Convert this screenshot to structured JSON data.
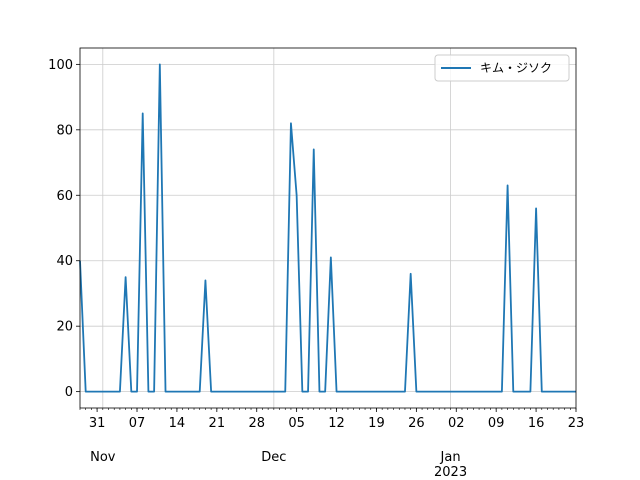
{
  "chart_data": {
    "type": "line",
    "title": "",
    "xlabel": "",
    "ylabel": "",
    "x_range": [
      "2022-10-28",
      "2023-01-23"
    ],
    "ylim": [
      -5,
      105
    ],
    "grid": true,
    "legend_position": "top-right",
    "y_ticks": [
      0,
      20,
      40,
      60,
      80,
      100
    ],
    "x_major_ticks": [
      {
        "date": "2022-10-31",
        "label": "31"
      },
      {
        "date": "2022-11-07",
        "label": "07"
      },
      {
        "date": "2022-11-14",
        "label": "14"
      },
      {
        "date": "2022-11-21",
        "label": "21"
      },
      {
        "date": "2022-11-28",
        "label": "28"
      },
      {
        "date": "2022-12-05",
        "label": "05"
      },
      {
        "date": "2022-12-12",
        "label": "12"
      },
      {
        "date": "2022-12-19",
        "label": "19"
      },
      {
        "date": "2022-12-26",
        "label": "26"
      },
      {
        "date": "2023-01-02",
        "label": "02"
      },
      {
        "date": "2023-01-09",
        "label": "09"
      },
      {
        "date": "2023-01-16",
        "label": "16"
      },
      {
        "date": "2023-01-23",
        "label": "23"
      }
    ],
    "x_month_labels": [
      {
        "date": "2022-11-01",
        "label": "Nov"
      },
      {
        "date": "2022-12-01",
        "label": "Dec"
      },
      {
        "date": "2023-01-01",
        "label": "Jan"
      }
    ],
    "x_year_label": {
      "date": "2023-01-01",
      "label": "2023"
    },
    "grid_dates": [
      "2022-11-01",
      "2022-12-01",
      "2023-01-01"
    ],
    "series": [
      {
        "name": "キム・ジソク",
        "color": "#1f77b4",
        "points": [
          [
            "2022-10-28",
            40
          ],
          [
            "2022-10-29",
            0
          ],
          [
            "2022-11-04",
            0
          ],
          [
            "2022-11-05",
            35
          ],
          [
            "2022-11-06",
            0
          ],
          [
            "2022-11-07",
            0
          ],
          [
            "2022-11-08",
            85
          ],
          [
            "2022-11-09",
            0
          ],
          [
            "2022-11-10",
            0
          ],
          [
            "2022-11-11",
            100
          ],
          [
            "2022-11-12",
            0
          ],
          [
            "2022-11-18",
            0
          ],
          [
            "2022-11-19",
            34
          ],
          [
            "2022-11-20",
            0
          ],
          [
            "2022-12-03",
            0
          ],
          [
            "2022-12-04",
            82
          ],
          [
            "2022-12-05",
            60
          ],
          [
            "2022-12-06",
            0
          ],
          [
            "2022-12-07",
            0
          ],
          [
            "2022-12-08",
            74
          ],
          [
            "2022-12-09",
            0
          ],
          [
            "2022-12-10",
            0
          ],
          [
            "2022-12-11",
            41
          ],
          [
            "2022-12-12",
            0
          ],
          [
            "2022-12-24",
            0
          ],
          [
            "2022-12-25",
            36
          ],
          [
            "2022-12-26",
            0
          ],
          [
            "2023-01-10",
            0
          ],
          [
            "2023-01-11",
            63
          ],
          [
            "2023-01-12",
            0
          ],
          [
            "2023-01-15",
            0
          ],
          [
            "2023-01-16",
            56
          ],
          [
            "2023-01-17",
            0
          ],
          [
            "2023-01-23",
            0
          ]
        ]
      }
    ]
  }
}
